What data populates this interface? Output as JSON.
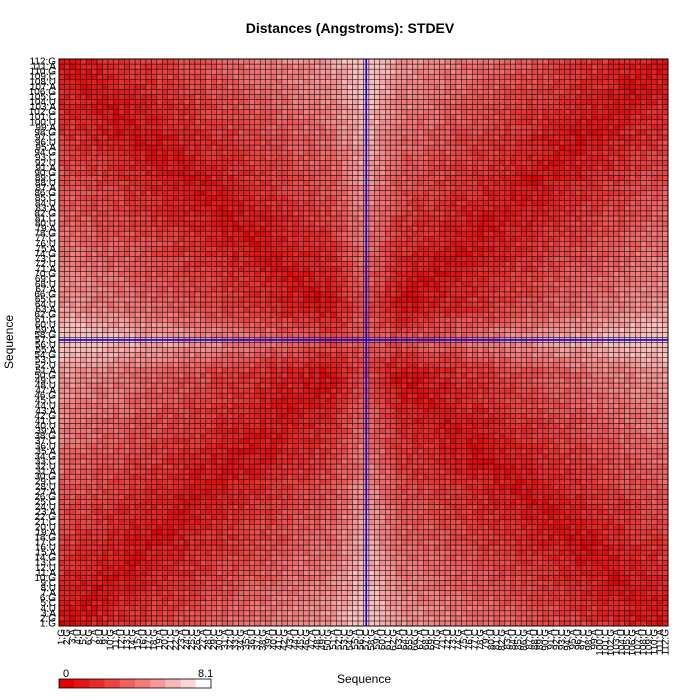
{
  "chart_data": {
    "type": "heatmap",
    "title": "Distances (Angstroms):  STDEV",
    "xlabel": "Sequence",
    "ylabel": "Sequence",
    "n": 112,
    "labels": [
      "1:G",
      "2:G",
      "3:A",
      "4:U",
      "5:C",
      "6:G",
      "7:A",
      "8:U",
      "9:C",
      "10:G",
      "11:A",
      "12:U",
      "13:C",
      "14:G",
      "15:A",
      "16:U",
      "17:C",
      "18:G",
      "19:A",
      "20:U",
      "21:C",
      "22:G",
      "23:A",
      "24:U",
      "25:C",
      "26:G",
      "27:A",
      "28:U",
      "29:C",
      "30:G",
      "31:A",
      "32:U",
      "33:C",
      "34:G",
      "35:A",
      "36:U",
      "37:C",
      "38:G",
      "39:A",
      "40:U",
      "41:C",
      "42:G",
      "43:A",
      "44:U",
      "45:C",
      "46:G",
      "47:A",
      "48:U",
      "49:C",
      "50:G",
      "51:A",
      "52:U",
      "53:C",
      "54:G",
      "55:A",
      "56:U",
      "57:C",
      "58:G",
      "59:A",
      "60:U",
      "61:C",
      "62:G",
      "63:A",
      "64:U",
      "65:C",
      "66:G",
      "67:A",
      "68:U",
      "69:C",
      "70:G",
      "71:A",
      "72:U",
      "73:C",
      "74:G",
      "75:A",
      "76:U",
      "77:C",
      "78:G",
      "79:A",
      "80:U",
      "81:C",
      "82:G",
      "83:A",
      "84:U",
      "85:C",
      "86:G",
      "87:A",
      "88:U",
      "89:C",
      "90:G",
      "91:A",
      "92:U",
      "93:C",
      "94:G",
      "95:A",
      "96:U",
      "97:C",
      "98:G",
      "99:A",
      "100:U",
      "101:C",
      "102:G",
      "103:A",
      "104:U",
      "105:C",
      "106:G",
      "107:A",
      "108:U",
      "109:C",
      "110:G",
      "111:A",
      "112:G"
    ],
    "highlight_index": 56,
    "highlight_color": "#0000ff",
    "grid": true,
    "colorscale": {
      "min": 0,
      "max": 8.1,
      "min_label": "0",
      "max_label": "8.1",
      "colors": [
        "#e00000",
        "#e41414",
        "#e82a2a",
        "#ec4444",
        "#f06060",
        "#f47a7a",
        "#f89898",
        "#fbb6b6",
        "#fdd5d5",
        "#ffffff"
      ]
    },
    "cell_color_low": "#dc0000",
    "cell_color_high": "#fac0c0"
  }
}
